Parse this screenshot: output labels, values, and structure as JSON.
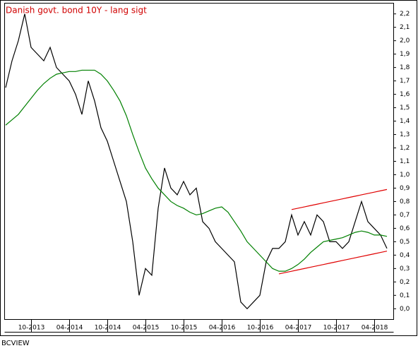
{
  "chart_data": {
    "type": "line",
    "title": "Danish govt. bond 10Y - lang sigt",
    "footer": "BCVIEW",
    "x": [
      "06-2013",
      "07-2013",
      "08-2013",
      "09-2013",
      "10-2013",
      "11-2013",
      "12-2013",
      "01-2014",
      "02-2014",
      "03-2014",
      "04-2014",
      "05-2014",
      "06-2014",
      "07-2014",
      "08-2014",
      "09-2014",
      "10-2014",
      "11-2014",
      "12-2014",
      "01-2015",
      "02-2015",
      "03-2015",
      "04-2015",
      "05-2015",
      "06-2015",
      "07-2015",
      "08-2015",
      "09-2015",
      "10-2015",
      "11-2015",
      "12-2015",
      "01-2016",
      "02-2016",
      "03-2016",
      "04-2016",
      "05-2016",
      "06-2016",
      "07-2016",
      "08-2016",
      "09-2016",
      "10-2016",
      "11-2016",
      "12-2016",
      "01-2017",
      "02-2017",
      "03-2017",
      "04-2017",
      "05-2017",
      "06-2017",
      "07-2017",
      "08-2017",
      "09-2017",
      "10-2017",
      "11-2017",
      "12-2017",
      "01-2018",
      "02-2018",
      "03-2018",
      "04-2018",
      "05-2018",
      "06-2018"
    ],
    "xticks": [
      "10-2013",
      "04-2014",
      "10-2014",
      "04-2015",
      "10-2015",
      "04-2016",
      "10-2016",
      "04-2017",
      "10-2017",
      "04-2018"
    ],
    "series": [
      {
        "color": "#000000",
        "values": [
          1.65,
          1.85,
          2.0,
          2.2,
          1.95,
          1.9,
          1.85,
          1.95,
          1.8,
          1.75,
          1.7,
          1.6,
          1.45,
          1.7,
          1.55,
          1.35,
          1.25,
          1.1,
          0.95,
          0.8,
          0.5,
          0.1,
          0.3,
          0.25,
          0.75,
          1.05,
          0.9,
          0.85,
          0.95,
          0.85,
          0.9,
          0.65,
          0.6,
          0.5,
          0.45,
          0.4,
          0.35,
          0.05,
          0.0,
          0.05,
          0.1,
          0.35,
          0.45,
          0.45,
          0.5,
          0.7,
          0.55,
          0.65,
          0.55,
          0.7,
          0.65,
          0.5,
          0.5,
          0.45,
          0.5,
          0.65,
          0.8,
          0.65,
          0.6,
          0.55,
          0.45
        ]
      },
      {
        "color": "#008000",
        "values": [
          1.37,
          1.41,
          1.45,
          1.51,
          1.57,
          1.63,
          1.68,
          1.72,
          1.75,
          1.76,
          1.77,
          1.77,
          1.78,
          1.78,
          1.78,
          1.75,
          1.7,
          1.63,
          1.55,
          1.44,
          1.3,
          1.17,
          1.05,
          0.97,
          0.9,
          0.85,
          0.8,
          0.77,
          0.75,
          0.72,
          0.7,
          0.71,
          0.73,
          0.75,
          0.76,
          0.72,
          0.65,
          0.58,
          0.5,
          0.45,
          0.4,
          0.35,
          0.3,
          0.28,
          0.28,
          0.3,
          0.33,
          0.37,
          0.42,
          0.46,
          0.5,
          0.51,
          0.52,
          0.53,
          0.55,
          0.57,
          0.58,
          0.57,
          0.55,
          0.55,
          0.54
        ]
      },
      {
        "color": "#e00000",
        "values": [
          null,
          null,
          null,
          null,
          null,
          null,
          null,
          null,
          null,
          null,
          null,
          null,
          null,
          null,
          null,
          null,
          null,
          null,
          null,
          null,
          null,
          null,
          null,
          null,
          null,
          null,
          null,
          null,
          null,
          null,
          null,
          null,
          null,
          null,
          null,
          null,
          null,
          null,
          null,
          null,
          null,
          null,
          null,
          null,
          null,
          0.74,
          0.75,
          0.76,
          0.77,
          0.78,
          0.79,
          0.8,
          0.81,
          0.82,
          0.83,
          0.84,
          0.85,
          0.86,
          0.87,
          0.88,
          0.89
        ]
      },
      {
        "color": "#e00000",
        "values": [
          null,
          null,
          null,
          null,
          null,
          null,
          null,
          null,
          null,
          null,
          null,
          null,
          null,
          null,
          null,
          null,
          null,
          null,
          null,
          null,
          null,
          null,
          null,
          null,
          null,
          null,
          null,
          null,
          null,
          null,
          null,
          null,
          null,
          null,
          null,
          null,
          null,
          null,
          null,
          null,
          null,
          null,
          null,
          0.26,
          0.27,
          0.28,
          0.29,
          0.3,
          0.31,
          0.32,
          0.33,
          0.34,
          0.35,
          0.36,
          0.37,
          0.38,
          0.39,
          0.4,
          0.41,
          0.42,
          0.43
        ]
      }
    ],
    "ylim": [
      -0.08,
      2.28
    ],
    "yticks": [
      {
        "value": 0.0,
        "label": "0,0"
      },
      {
        "value": 0.1,
        "label": "0,1"
      },
      {
        "value": 0.2,
        "label": "0,2"
      },
      {
        "value": 0.3,
        "label": "0,3"
      },
      {
        "value": 0.4,
        "label": "0,4"
      },
      {
        "value": 0.5,
        "label": "0,5"
      },
      {
        "value": 0.6,
        "label": "0,6"
      },
      {
        "value": 0.7,
        "label": "0,7"
      },
      {
        "value": 0.8,
        "label": "0,8"
      },
      {
        "value": 0.9,
        "label": "0,9"
      },
      {
        "value": 1.0,
        "label": "1,0"
      },
      {
        "value": 1.1,
        "label": "1,1"
      },
      {
        "value": 1.2,
        "label": "1,2"
      },
      {
        "value": 1.3,
        "label": "1,3"
      },
      {
        "value": 1.4,
        "label": "1,4"
      },
      {
        "value": 1.5,
        "label": "1,5"
      },
      {
        "value": 1.6,
        "label": "1,6"
      },
      {
        "value": 1.7,
        "label": "1,7"
      },
      {
        "value": 1.8,
        "label": "1,8"
      },
      {
        "value": 1.9,
        "label": "1,9"
      },
      {
        "value": 2.0,
        "label": "2,0"
      },
      {
        "value": 2.1,
        "label": "2,1"
      },
      {
        "value": 2.2,
        "label": "2,2"
      }
    ],
    "grid": false
  }
}
